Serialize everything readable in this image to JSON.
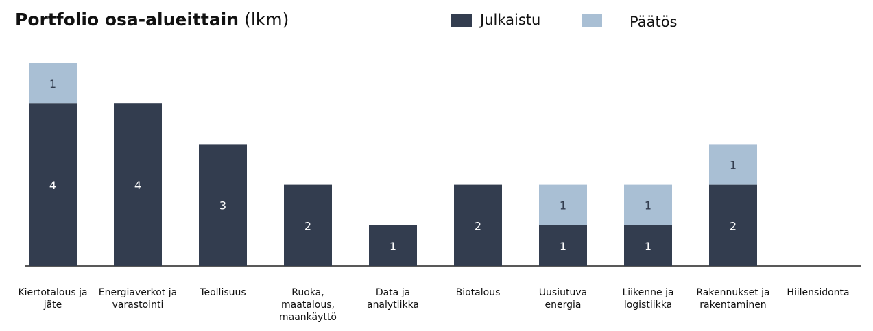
{
  "chart_data": {
    "type": "stacked_bar",
    "title": "Portfolio osa-alueittain",
    "title_unit": "(lkm)",
    "categories": [
      "Kiertotalous ja jäte",
      "Energiaverkot ja varastointi",
      "Teollisuus",
      "Ruoka, maatalous, maankäyttö",
      "Data ja analytiikka",
      "Biotalous",
      "Uusiutuva energia",
      "Liikenne ja logistiikka",
      "Rakennukset ja rakentaminen",
      "Hiilensidonta"
    ],
    "series": [
      {
        "name": "Julkaistu",
        "color": "#333d4f",
        "label_color": "#ffffff",
        "values": [
          4,
          4,
          3,
          2,
          1,
          2,
          1,
          1,
          2,
          null
        ]
      },
      {
        "name": "Päätös",
        "color": "#a9bfd4",
        "label_color": "#333d4f",
        "values": [
          1,
          null,
          null,
          null,
          null,
          null,
          1,
          1,
          1,
          null
        ]
      }
    ],
    "ylim": [
      0,
      5
    ],
    "legend": "top"
  }
}
